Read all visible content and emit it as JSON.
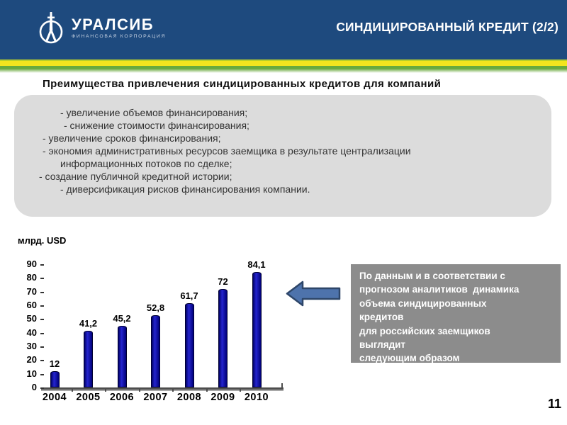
{
  "header": {
    "logo": {
      "name": "УРАЛСИБ",
      "subtitle": "ФИНАНСОВАЯ КОРПОРАЦИЯ"
    },
    "title": "СИНДИЦИРОВАННЫЙ КРЕДИТ (2/2)"
  },
  "main": {
    "heading": "Преимущества привлечения синдицированных кредитов для компаний",
    "benefits": [
      "- увеличение объемов финансирования;",
      "- снижение стоимости финансирования;",
      "- увеличение сроков финансирования;",
      "- экономия административных ресурсов заемщика в результате централизации",
      "информационных потоков по сделке;",
      "- создание публичной кредитной истории;",
      "- диверсификация рисков финансирования компании."
    ]
  },
  "chart": {
    "unit_label": "млрд. USD"
  },
  "chart_data": {
    "type": "bar",
    "title": "",
    "categories": [
      "2004",
      "2005",
      "2006",
      "2007",
      "2008",
      "2009",
      "2010"
    ],
    "values": [
      12,
      41.2,
      45.2,
      52.8,
      61.7,
      72,
      84.1
    ],
    "value_labels": [
      "12",
      "41,2",
      "45,2",
      "52,8",
      "61,7",
      "72",
      "84,1"
    ],
    "xlabel": "",
    "ylabel": "млрд. USD",
    "ylim": [
      0,
      90
    ],
    "yticks": [
      0,
      10,
      20,
      30,
      40,
      50,
      60,
      70,
      80,
      90
    ],
    "grid": false,
    "legend": false,
    "bar_color": "#1a1ab8"
  },
  "callout": {
    "text": "По данным и в соответствии с\nпрогнозом аналитиков  динамика\nобъема синдицированных\nкредитов\nдля российских заемщиков\nвыглядит\nследующим образом"
  },
  "page_number": "11",
  "colors": {
    "header_blue": "#1e4a7e",
    "stripe_yellow": "#f3e51e",
    "stripe_green": "#69aa3d",
    "benefits_box_gray": "#dcdcdc",
    "callout_gray": "#8c8c8c",
    "bar_blue": "#1a1ab8",
    "arrow_blue": "#4e73ac"
  }
}
